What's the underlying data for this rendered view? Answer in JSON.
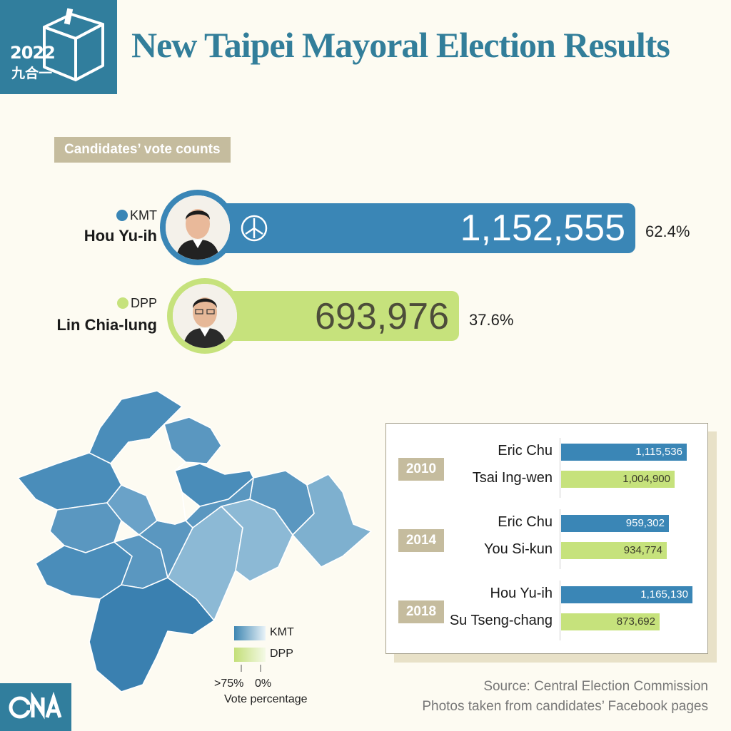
{
  "header": {
    "logo_year": "2022",
    "logo_cn": "九合一",
    "title": "New Taipei Mayoral Election Results"
  },
  "section_label": "Candidates’ vote counts",
  "chart_data": [
    {
      "type": "bar",
      "title": "Candidates’ vote counts",
      "orientation": "horizontal",
      "categories": [
        "Hou Yu-ih",
        "Lin Chia-lung"
      ],
      "parties": [
        "KMT",
        "DPP"
      ],
      "values": [
        1152555,
        693976
      ],
      "value_labels": [
        "1,152,555",
        "693,976"
      ],
      "percentages": [
        "62.4%",
        "37.6%"
      ],
      "colors": [
        "#3a86b6",
        "#c6e27c"
      ]
    },
    {
      "type": "bar",
      "orientation": "horizontal",
      "groups": [
        {
          "year": "2010",
          "candidates": [
            {
              "name": "Eric Chu",
              "party": "KMT",
              "votes": 1115536,
              "label": "1,115,536"
            },
            {
              "name": "Tsai Ing-wen",
              "party": "DPP",
              "votes": 1004900,
              "label": "1,004,900"
            }
          ]
        },
        {
          "year": "2014",
          "candidates": [
            {
              "name": "Eric Chu",
              "party": "KMT",
              "votes": 959302,
              "label": "959,302"
            },
            {
              "name": "You Si-kun",
              "party": "DPP",
              "votes": 934774,
              "label": "934,774"
            }
          ]
        },
        {
          "year": "2018",
          "candidates": [
            {
              "name": "Hou Yu-ih",
              "party": "KMT",
              "votes": 1165130,
              "label": "1,165,130"
            },
            {
              "name": "Su Tseng-chang",
              "party": "DPP",
              "votes": 873692,
              "label": "873,692"
            }
          ]
        }
      ]
    }
  ],
  "map": {
    "legend": [
      {
        "label": "KMT",
        "color_strong": "#3e86b2",
        "color_weak": "#eaf3f8"
      },
      {
        "label": "DPP",
        "color_strong": "#c3df78",
        "color_weak": "#f4f9e6"
      }
    ],
    "scale_high": ">75%",
    "scale_low": "0%",
    "scale_title": "Vote percentage"
  },
  "source": {
    "line1": "Source: Central Election Commission",
    "line2": "Photos taken from candidates’ Facebook pages"
  },
  "colors": {
    "kmt": "#3a86b6",
    "dpp": "#c6e27c",
    "accent": "#317e9d",
    "tan": "#c5bc9e"
  },
  "icons": [
    "ballot-box-icon",
    "ballot-stamp-icon",
    "cna-logo-icon"
  ]
}
